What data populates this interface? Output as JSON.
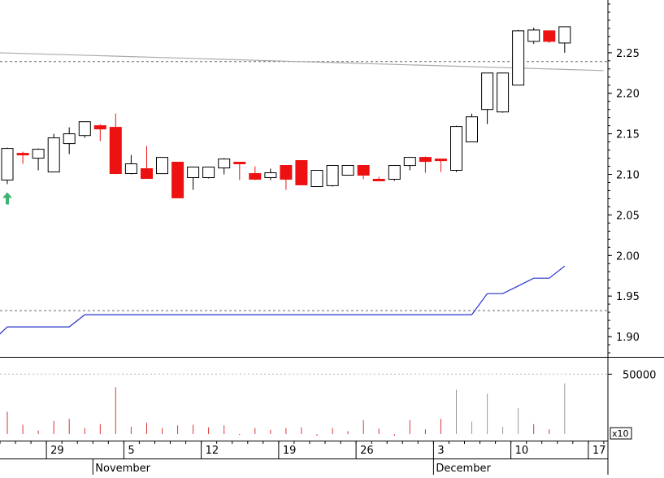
{
  "chart_data": {
    "type": "candlestick",
    "price_axis": {
      "ticks": [
        1.9,
        1.95,
        2.0,
        2.05,
        2.1,
        2.15,
        2.2,
        2.25
      ],
      "tick_labels": [
        "1.90",
        "1.95",
        "2.00",
        "2.05",
        "2.10",
        "2.15",
        "2.20",
        "2.25"
      ],
      "range": [
        1.875,
        2.315
      ]
    },
    "volume_axis": {
      "ticks": [
        50000
      ],
      "tick_labels": [
        "50000"
      ],
      "multiplier_label": "x10",
      "range": [
        0,
        59000
      ]
    },
    "date_axis": {
      "day_labels": [
        {
          "i": 3,
          "label": "29"
        },
        {
          "i": 8,
          "label": "5"
        },
        {
          "i": 13,
          "label": "12"
        },
        {
          "i": 18,
          "label": "19"
        },
        {
          "i": 23,
          "label": "26"
        },
        {
          "i": 28,
          "label": "3"
        },
        {
          "i": 33,
          "label": "10"
        },
        {
          "i": 38,
          "label": "17"
        }
      ],
      "month_labels": [
        {
          "i": 5.5,
          "label": "November"
        },
        {
          "i": 27.5,
          "label": "December"
        }
      ]
    },
    "candles": [
      {
        "o": 2.093,
        "h": 2.133,
        "l": 2.088,
        "c": 2.132,
        "color": "white"
      },
      {
        "o": 2.126,
        "h": 2.128,
        "l": 2.113,
        "c": 2.124,
        "color": "red"
      },
      {
        "o": 2.12,
        "h": 2.132,
        "l": 2.105,
        "c": 2.131,
        "color": "white"
      },
      {
        "o": 2.103,
        "h": 2.15,
        "l": 2.103,
        "c": 2.145,
        "color": "white"
      },
      {
        "o": 2.138,
        "h": 2.158,
        "l": 2.125,
        "c": 2.15,
        "color": "white"
      },
      {
        "o": 2.148,
        "h": 2.165,
        "l": 2.145,
        "c": 2.165,
        "color": "white"
      },
      {
        "o": 2.16,
        "h": 2.162,
        "l": 2.141,
        "c": 2.156,
        "color": "red"
      },
      {
        "o": 2.158,
        "h": 2.175,
        "l": 2.1,
        "c": 2.101,
        "color": "red"
      },
      {
        "o": 2.101,
        "h": 2.124,
        "l": 2.1,
        "c": 2.113,
        "color": "white"
      },
      {
        "o": 2.107,
        "h": 2.135,
        "l": 2.095,
        "c": 2.095,
        "color": "red"
      },
      {
        "o": 2.101,
        "h": 2.121,
        "l": 2.101,
        "c": 2.121,
        "color": "white"
      },
      {
        "o": 2.115,
        "h": 2.115,
        "l": 2.071,
        "c": 2.071,
        "color": "red"
      },
      {
        "o": 2.096,
        "h": 2.109,
        "l": 2.081,
        "c": 2.109,
        "color": "white"
      },
      {
        "o": 2.096,
        "h": 2.109,
        "l": 2.095,
        "c": 2.109,
        "color": "white"
      },
      {
        "o": 2.108,
        "h": 2.12,
        "l": 2.1,
        "c": 2.119,
        "color": "white"
      },
      {
        "o": 2.115,
        "h": 2.115,
        "l": 2.093,
        "c": 2.114,
        "color": "red"
      },
      {
        "o": 2.101,
        "h": 2.11,
        "l": 2.093,
        "c": 2.094,
        "color": "red"
      },
      {
        "o": 2.096,
        "h": 2.107,
        "l": 2.093,
        "c": 2.102,
        "color": "white"
      },
      {
        "o": 2.111,
        "h": 2.111,
        "l": 2.081,
        "c": 2.094,
        "color": "red"
      },
      {
        "o": 2.117,
        "h": 2.117,
        "l": 2.087,
        "c": 2.087,
        "color": "red"
      },
      {
        "o": 2.085,
        "h": 2.105,
        "l": 2.085,
        "c": 2.105,
        "color": "white"
      },
      {
        "o": 2.086,
        "h": 2.111,
        "l": 2.085,
        "c": 2.111,
        "color": "white"
      },
      {
        "o": 2.099,
        "h": 2.111,
        "l": 2.099,
        "c": 2.111,
        "color": "white"
      },
      {
        "o": 2.111,
        "h": 2.111,
        "l": 2.094,
        "c": 2.099,
        "color": "red"
      },
      {
        "o": 2.094,
        "h": 2.097,
        "l": 2.092,
        "c": 2.094,
        "color": "red"
      },
      {
        "o": 2.094,
        "h": 2.111,
        "l": 2.092,
        "c": 2.111,
        "color": "white"
      },
      {
        "o": 2.111,
        "h": 2.121,
        "l": 2.105,
        "c": 2.121,
        "color": "white"
      },
      {
        "o": 2.121,
        "h": 2.122,
        "l": 2.102,
        "c": 2.116,
        "color": "red"
      },
      {
        "o": 2.119,
        "h": 2.119,
        "l": 2.103,
        "c": 2.118,
        "color": "red"
      },
      {
        "o": 2.105,
        "h": 2.16,
        "l": 2.103,
        "c": 2.159,
        "color": "white"
      },
      {
        "o": 2.14,
        "h": 2.175,
        "l": 2.14,
        "c": 2.171,
        "color": "white"
      },
      {
        "o": 2.18,
        "h": 2.225,
        "l": 2.162,
        "c": 2.225,
        "color": "white"
      },
      {
        "o": 2.177,
        "h": 2.225,
        "l": 2.176,
        "c": 2.225,
        "color": "white"
      },
      {
        "o": 2.21,
        "h": 2.278,
        "l": 2.21,
        "c": 2.277,
        "color": "white"
      },
      {
        "o": 2.264,
        "h": 2.281,
        "l": 2.261,
        "c": 2.278,
        "color": "white"
      },
      {
        "o": 2.277,
        "h": 2.277,
        "l": 2.262,
        "c": 2.264,
        "color": "red"
      },
      {
        "o": 2.262,
        "h": 2.282,
        "l": 2.25,
        "c": 2.282,
        "color": "white"
      }
    ],
    "volume": [
      {
        "v": 21000,
        "color": "red"
      },
      {
        "v": 11000,
        "color": "red"
      },
      {
        "v": 6500,
        "color": "red"
      },
      {
        "v": 14000,
        "color": "red"
      },
      {
        "v": 15500,
        "color": "red"
      },
      {
        "v": 8500,
        "color": "red"
      },
      {
        "v": 11500,
        "color": "red"
      },
      {
        "v": 40000,
        "color": "red"
      },
      {
        "v": 9500,
        "color": "red"
      },
      {
        "v": 12500,
        "color": "red"
      },
      {
        "v": 8500,
        "color": "red"
      },
      {
        "v": 10500,
        "color": "red"
      },
      {
        "v": 11000,
        "color": "red"
      },
      {
        "v": 9000,
        "color": "red"
      },
      {
        "v": 10500,
        "color": "red"
      },
      {
        "v": 3000,
        "color": "red"
      },
      {
        "v": 8500,
        "color": "red"
      },
      {
        "v": 7000,
        "color": "red"
      },
      {
        "v": 8500,
        "color": "red"
      },
      {
        "v": 9000,
        "color": "red"
      },
      {
        "v": 2500,
        "color": "red"
      },
      {
        "v": 8500,
        "color": "red"
      },
      {
        "v": 6000,
        "color": "red"
      },
      {
        "v": 14500,
        "color": "red"
      },
      {
        "v": 8000,
        "color": "red"
      },
      {
        "v": 2500,
        "color": "red"
      },
      {
        "v": 14500,
        "color": "red"
      },
      {
        "v": 7500,
        "color": "red"
      },
      {
        "v": 15500,
        "color": "red"
      },
      {
        "v": 38000,
        "color": "gray"
      },
      {
        "v": 13500,
        "color": "gray"
      },
      {
        "v": 35000,
        "color": "gray"
      },
      {
        "v": 9500,
        "color": "gray"
      },
      {
        "v": 24000,
        "color": "gray"
      },
      {
        "v": 11500,
        "color": "red"
      },
      {
        "v": 7500,
        "color": "red"
      },
      {
        "v": 43000,
        "color": "gray"
      }
    ],
    "blue_line": [
      {
        "i": -0.5,
        "y": 1.903
      },
      {
        "i": 0,
        "y": 1.912
      },
      {
        "i": 4,
        "y": 1.912
      },
      {
        "i": 5,
        "y": 1.927
      },
      {
        "i": 30,
        "y": 1.927
      },
      {
        "i": 31,
        "y": 1.953
      },
      {
        "i": 32,
        "y": 1.953
      },
      {
        "i": 34,
        "y": 1.972
      },
      {
        "i": 35,
        "y": 1.972
      },
      {
        "i": 36,
        "y": 1.987
      }
    ],
    "gray_line": [
      {
        "i": -0.5,
        "y": 2.25
      },
      {
        "i": 38.5,
        "y": 2.228
      }
    ],
    "dashed_levels": {
      "price": [
        2.239,
        1.932
      ],
      "volume_gridline": 50000
    },
    "signal_arrow": {
      "i": 0,
      "y": 2.078,
      "color": "#3cb371"
    },
    "colors": {
      "up_body": "#ffffff",
      "up_outline": "#000000",
      "down": "#ee1111",
      "volume_red": "#dd3333",
      "volume_gray": "#999999",
      "blue_line": "#2233cc",
      "gray_line": "#aaaaaa"
    }
  }
}
